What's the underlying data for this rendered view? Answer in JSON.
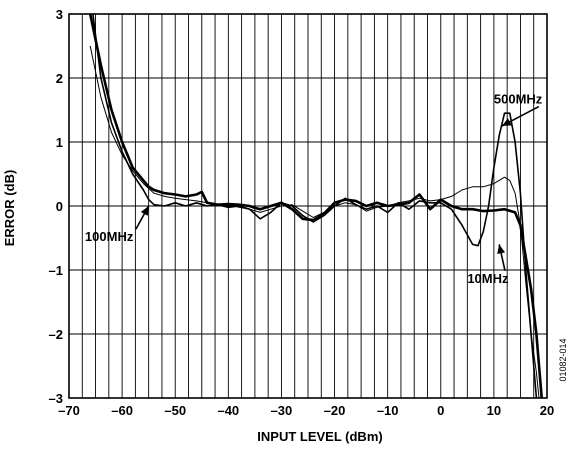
{
  "chart_data": {
    "type": "line",
    "title": "",
    "xlabel": "INPUT LEVEL (dBm)",
    "ylabel": "ERROR (dB)",
    "xlim": [
      -70,
      20
    ],
    "ylim": [
      -3,
      3
    ],
    "x_ticks": [
      -70,
      -60,
      -50,
      -40,
      -30,
      -20,
      -10,
      0,
      10,
      20
    ],
    "x_tick_labels": [
      "–70",
      "–60",
      "–50",
      "–40",
      "–30",
      "–20",
      "–10",
      "0",
      "10",
      "20"
    ],
    "y_ticks": [
      -3,
      -2,
      -1,
      0,
      1,
      2,
      3
    ],
    "y_tick_labels": [
      "–3",
      "–2",
      "–1",
      "0",
      "1",
      "2",
      "3"
    ],
    "x_minor_step": 2.5,
    "grid": true,
    "figure_id": "01082-014",
    "annotations": [
      {
        "text": "500MHz",
        "x": 10,
        "y": 1.6,
        "arrow_to": [
          11.5,
          1.25
        ]
      },
      {
        "text": "100MHz",
        "x": -67,
        "y": -0.55,
        "arrow_to": [
          -55,
          0.0
        ]
      },
      {
        "text": "10MHz",
        "x": 5,
        "y": -1.2,
        "arrow_to": [
          11,
          -0.6
        ]
      }
    ],
    "series": [
      {
        "name": "10MHz",
        "width": 2.6,
        "x": [
          -66,
          -64,
          -62,
          -60,
          -58,
          -56,
          -55,
          -54,
          -52,
          -50,
          -48,
          -46,
          -45,
          -44,
          -42,
          -40,
          -38,
          -36,
          -35,
          -34,
          -32,
          -30,
          -28,
          -26,
          -24,
          -22,
          -20,
          -18,
          -16,
          -14,
          -12,
          -10,
          -8,
          -6,
          -4,
          -2,
          0,
          2,
          4,
          6,
          8,
          10,
          12,
          14,
          15,
          16,
          17,
          18,
          19
        ],
        "y": [
          3.0,
          2.2,
          1.5,
          1.0,
          0.6,
          0.4,
          0.3,
          0.25,
          0.2,
          0.18,
          0.15,
          0.18,
          0.22,
          0.05,
          0.02,
          0.03,
          0.02,
          0.0,
          -0.03,
          -0.05,
          0.0,
          0.05,
          -0.05,
          -0.2,
          -0.22,
          -0.12,
          0.05,
          0.1,
          0.08,
          0.0,
          0.05,
          0.0,
          0.02,
          0.05,
          0.18,
          -0.05,
          0.1,
          0.0,
          -0.05,
          -0.05,
          -0.08,
          -0.07,
          -0.05,
          -0.1,
          -0.3,
          -0.8,
          -1.3,
          -2.0,
          -3.0
        ]
      },
      {
        "name": "100MHz",
        "width": 1.0,
        "x": [
          -66,
          -64,
          -62,
          -60,
          -58,
          -56,
          -54,
          -52,
          -50,
          -48,
          -46,
          -44,
          -42,
          -40,
          -38,
          -36,
          -34,
          -32,
          -30,
          -28,
          -26,
          -24,
          -22,
          -20,
          -18,
          -16,
          -14,
          -12,
          -10,
          -8,
          -6,
          -4,
          -2,
          0,
          2,
          4,
          6,
          8,
          10,
          12,
          13,
          14,
          15,
          16,
          17,
          18,
          18.5
        ],
        "y": [
          2.5,
          1.7,
          1.15,
          0.8,
          0.55,
          0.35,
          0.2,
          0.15,
          0.12,
          0.1,
          0.08,
          0.05,
          0.0,
          0.02,
          -0.02,
          -0.05,
          -0.1,
          -0.05,
          0.0,
          0.02,
          -0.08,
          -0.18,
          -0.1,
          0.0,
          0.05,
          0.02,
          -0.08,
          -0.02,
          0.0,
          0.05,
          0.08,
          0.12,
          0.08,
          0.1,
          0.15,
          0.25,
          0.3,
          0.3,
          0.35,
          0.45,
          0.4,
          0.2,
          -0.3,
          -1.2,
          -2.0,
          -2.6,
          -3.0
        ]
      },
      {
        "name": "500MHz",
        "width": 1.6,
        "x": [
          -65.5,
          -64,
          -62,
          -60,
          -58,
          -56,
          -55,
          -54,
          -52,
          -50,
          -48,
          -46,
          -44,
          -42,
          -40,
          -38,
          -36,
          -34,
          -32,
          -30,
          -28,
          -26,
          -24,
          -22,
          -20,
          -18,
          -16,
          -14,
          -12,
          -10,
          -8,
          -6,
          -4,
          -2,
          0,
          2,
          4,
          6,
          7,
          8,
          9,
          10,
          11,
          12,
          13,
          14,
          15,
          16,
          17,
          18
        ],
        "y": [
          3.0,
          2.0,
          1.3,
          0.85,
          0.5,
          0.25,
          0.1,
          0.02,
          0.0,
          0.05,
          0.0,
          0.05,
          0.0,
          0.02,
          -0.02,
          0.0,
          -0.05,
          -0.2,
          -0.1,
          0.05,
          0.0,
          -0.15,
          -0.25,
          -0.15,
          0.0,
          0.12,
          0.02,
          -0.05,
          0.0,
          -0.1,
          0.05,
          -0.05,
          0.08,
          0.05,
          0.05,
          -0.05,
          -0.3,
          -0.6,
          -0.62,
          -0.4,
          0.0,
          0.6,
          1.1,
          1.45,
          1.45,
          1.0,
          0.2,
          -1.0,
          -2.0,
          -3.0
        ]
      }
    ]
  }
}
